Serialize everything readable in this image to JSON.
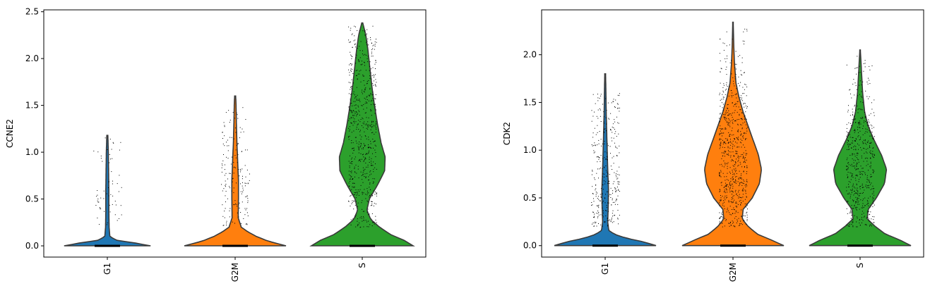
{
  "chart_data": [
    {
      "type": "violin",
      "title": "",
      "xlabel": "",
      "ylabel": "CCNE2",
      "categories": [
        "G1",
        "G2M",
        "S"
      ],
      "colors": [
        "#1f77b4",
        "#ff7f0e",
        "#2ca02c"
      ],
      "ylim": [
        -0.12,
        2.52
      ],
      "yticks": [
        0.0,
        0.5,
        1.0,
        1.5,
        2.0,
        2.5
      ],
      "ytick_labels": [
        "0.0",
        "0.5",
        "1.0",
        "1.5",
        "2.0",
        "2.5"
      ],
      "grid": false,
      "legend": "none",
      "series": [
        {
          "category": "G1",
          "max": 1.18,
          "density": [
            [
              0.0,
              0.85
            ],
            [
              0.03,
              0.55
            ],
            [
              0.06,
              0.18
            ],
            [
              0.1,
              0.05
            ],
            [
              0.2,
              0.035
            ],
            [
              0.4,
              0.03
            ],
            [
              0.6,
              0.03
            ],
            [
              0.8,
              0.025
            ],
            [
              1.0,
              0.02
            ],
            [
              1.18,
              0.01
            ]
          ],
          "points_range": [
            0.22,
            1.18
          ],
          "n_points": 60
        },
        {
          "category": "G2M",
          "max": 1.6,
          "density": [
            [
              0.0,
              1.0
            ],
            [
              0.05,
              0.65
            ],
            [
              0.1,
              0.42
            ],
            [
              0.15,
              0.25
            ],
            [
              0.2,
              0.12
            ],
            [
              0.3,
              0.06
            ],
            [
              0.5,
              0.065
            ],
            [
              0.7,
              0.065
            ],
            [
              0.9,
              0.05
            ],
            [
              1.1,
              0.035
            ],
            [
              1.3,
              0.025
            ],
            [
              1.5,
              0.018
            ],
            [
              1.6,
              0.01
            ]
          ],
          "points_range": [
            0.22,
            1.5
          ],
          "n_points": 160
        },
        {
          "category": "S",
          "max": 2.38,
          "density": [
            [
              0.0,
              1.0
            ],
            [
              0.06,
              0.82
            ],
            [
              0.12,
              0.56
            ],
            [
              0.2,
              0.34
            ],
            [
              0.28,
              0.17
            ],
            [
              0.38,
              0.09
            ],
            [
              0.5,
              0.14
            ],
            [
              0.65,
              0.3
            ],
            [
              0.8,
              0.44
            ],
            [
              0.95,
              0.45
            ],
            [
              1.1,
              0.37
            ],
            [
              1.3,
              0.3
            ],
            [
              1.5,
              0.24
            ],
            [
              1.7,
              0.19
            ],
            [
              1.9,
              0.15
            ],
            [
              2.1,
              0.11
            ],
            [
              2.25,
              0.07
            ],
            [
              2.38,
              0.01
            ]
          ],
          "points_range": [
            0.2,
            2.35
          ],
          "n_points": 650
        }
      ]
    },
    {
      "type": "violin",
      "title": "",
      "xlabel": "",
      "ylabel": "CDK2",
      "categories": [
        "G1",
        "G2M",
        "S"
      ],
      "colors": [
        "#1f77b4",
        "#ff7f0e",
        "#2ca02c"
      ],
      "ylim": [
        -0.12,
        2.47
      ],
      "yticks": [
        0.0,
        0.5,
        1.0,
        1.5,
        2.0
      ],
      "ytick_labels": [
        "0.0",
        "0.5",
        "1.0",
        "1.5",
        "2.0"
      ],
      "grid": false,
      "legend": "none",
      "series": [
        {
          "category": "G1",
          "max": 1.8,
          "density": [
            [
              0.0,
              1.0
            ],
            [
              0.04,
              0.75
            ],
            [
              0.08,
              0.4
            ],
            [
              0.12,
              0.18
            ],
            [
              0.16,
              0.07
            ],
            [
              0.25,
              0.05
            ],
            [
              0.4,
              0.06
            ],
            [
              0.6,
              0.065
            ],
            [
              0.8,
              0.05
            ],
            [
              1.0,
              0.04
            ],
            [
              1.2,
              0.03
            ],
            [
              1.4,
              0.02
            ],
            [
              1.6,
              0.015
            ],
            [
              1.8,
              0.008
            ]
          ],
          "points_range": [
            0.2,
            1.6
          ],
          "n_points": 320
        },
        {
          "category": "G2M",
          "max": 2.34,
          "density": [
            [
              0.0,
              1.0
            ],
            [
              0.06,
              0.75
            ],
            [
              0.12,
              0.48
            ],
            [
              0.2,
              0.3
            ],
            [
              0.28,
              0.18
            ],
            [
              0.38,
              0.2
            ],
            [
              0.5,
              0.38
            ],
            [
              0.65,
              0.52
            ],
            [
              0.8,
              0.56
            ],
            [
              0.95,
              0.5
            ],
            [
              1.1,
              0.4
            ],
            [
              1.25,
              0.3
            ],
            [
              1.4,
              0.2
            ],
            [
              1.55,
              0.12
            ],
            [
              1.7,
              0.06
            ],
            [
              1.9,
              0.03
            ],
            [
              2.1,
              0.015
            ],
            [
              2.34,
              0.005
            ]
          ],
          "points_range": [
            0.2,
            2.3
          ],
          "n_points": 700
        },
        {
          "category": "S",
          "max": 2.05,
          "density": [
            [
              0.0,
              1.0
            ],
            [
              0.06,
              0.78
            ],
            [
              0.12,
              0.5
            ],
            [
              0.2,
              0.3
            ],
            [
              0.28,
              0.14
            ],
            [
              0.38,
              0.16
            ],
            [
              0.5,
              0.32
            ],
            [
              0.65,
              0.48
            ],
            [
              0.8,
              0.52
            ],
            [
              0.95,
              0.42
            ],
            [
              1.1,
              0.28
            ],
            [
              1.25,
              0.16
            ],
            [
              1.4,
              0.09
            ],
            [
              1.6,
              0.05
            ],
            [
              1.8,
              0.03
            ],
            [
              2.05,
              0.005
            ]
          ],
          "points_range": [
            0.2,
            2.02
          ],
          "n_points": 560
        }
      ]
    }
  ]
}
